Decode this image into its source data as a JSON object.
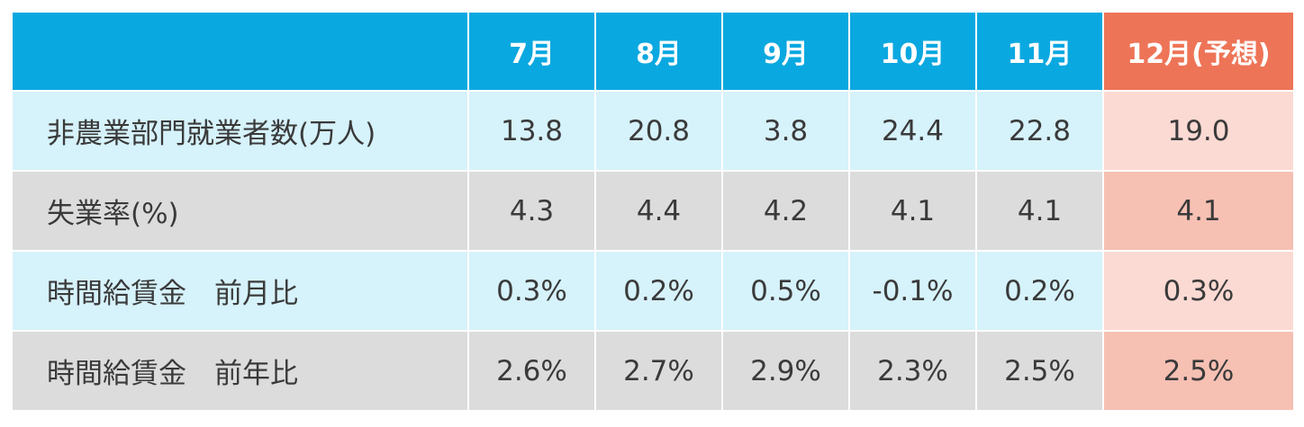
{
  "table": {
    "header": [
      "7月",
      "8月",
      "9月",
      "10月",
      "11月",
      "12月(予想)"
    ],
    "rows": [
      [
        "非農業部門就業者数(万人)",
        "13.8",
        "20.8",
        "3.8",
        "24.4",
        "22.8",
        "19.0"
      ],
      [
        "失業率(%)",
        "4.3",
        "4.4",
        "4.2",
        "4.1",
        "4.1",
        "4.1"
      ],
      [
        "時間給賃金　前月比",
        "0.3%",
        "0.2%",
        "0.5%",
        "-0.1%",
        "0.2%",
        "0.3%"
      ],
      [
        "時間給賃金　前年比",
        "2.6%",
        "2.7%",
        "2.9%",
        "2.3%",
        "2.5%",
        "2.5%"
      ]
    ]
  }
}
